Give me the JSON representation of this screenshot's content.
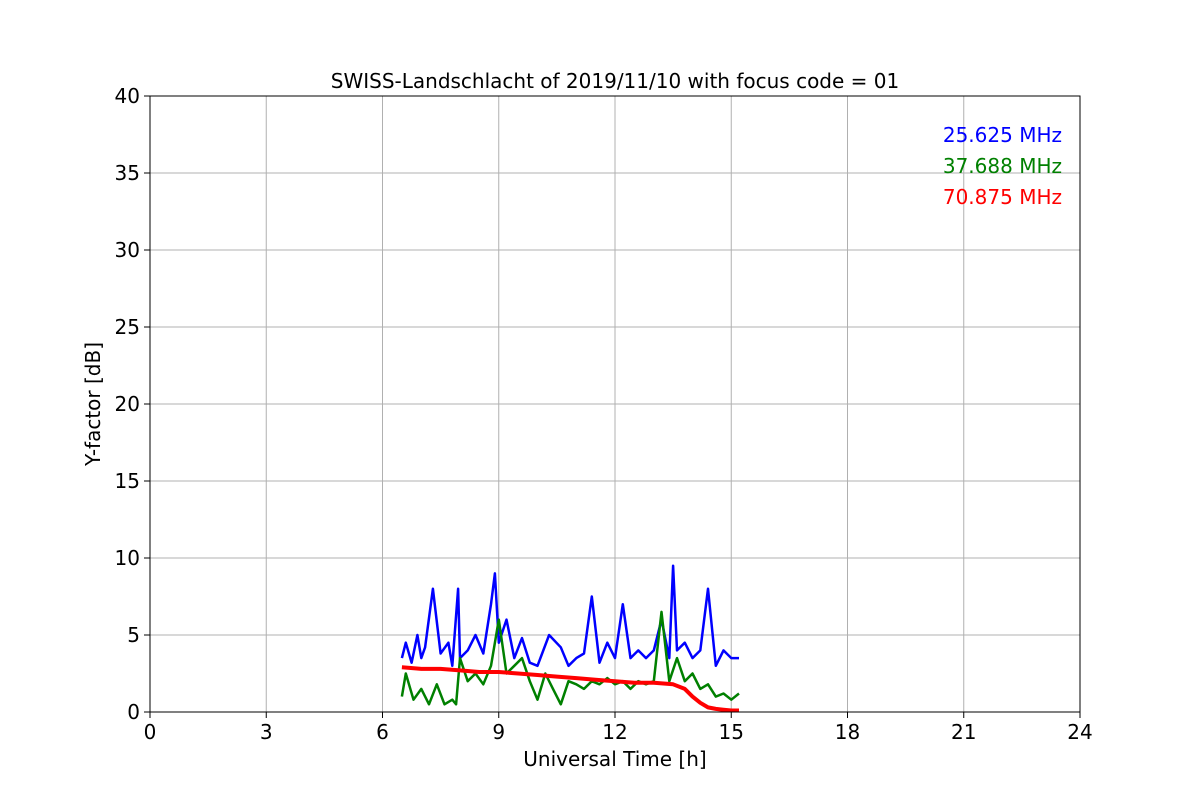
{
  "chart_data": {
    "type": "line",
    "title": "SWISS-Landschlacht of 2019/11/10 with focus code = 01",
    "xlabel": "Universal Time [h]",
    "ylabel": "Y-factor [dB]",
    "xlim": [
      0,
      24
    ],
    "ylim": [
      0,
      40
    ],
    "xticks": [
      0,
      3,
      6,
      9,
      12,
      15,
      18,
      21,
      24
    ],
    "yticks": [
      0,
      5,
      10,
      15,
      20,
      25,
      30,
      35,
      40
    ],
    "grid": true,
    "legend_position": "top-right",
    "series": [
      {
        "name": "25.625 MHz",
        "color": "#0000ff",
        "x": [
          6.5,
          6.6,
          6.75,
          6.9,
          7.0,
          7.1,
          7.3,
          7.5,
          7.7,
          7.8,
          7.95,
          8.0,
          8.2,
          8.4,
          8.6,
          8.8,
          8.9,
          9.0,
          9.2,
          9.4,
          9.6,
          9.8,
          10.0,
          10.3,
          10.6,
          10.8,
          11.0,
          11.2,
          11.4,
          11.6,
          11.8,
          12.0,
          12.2,
          12.4,
          12.6,
          12.8,
          13.0,
          13.2,
          13.4,
          13.5,
          13.6,
          13.8,
          14.0,
          14.2,
          14.4,
          14.6,
          14.8,
          15.0,
          15.2
        ],
        "y": [
          3.5,
          4.5,
          3.2,
          5.0,
          3.5,
          4.2,
          8.0,
          3.8,
          4.5,
          3.0,
          8.0,
          3.5,
          4.0,
          5.0,
          3.8,
          7.0,
          9.0,
          4.5,
          6.0,
          3.5,
          4.8,
          3.2,
          3.0,
          5.0,
          4.2,
          3.0,
          3.5,
          3.8,
          7.5,
          3.2,
          4.5,
          3.5,
          7.0,
          3.5,
          4.0,
          3.5,
          4.0,
          6.0,
          3.5,
          9.5,
          4.0,
          4.5,
          3.5,
          4.0,
          8.0,
          3.0,
          4.0,
          3.5,
          3.5
        ]
      },
      {
        "name": "37.688 MHz",
        "color": "#008000",
        "x": [
          6.5,
          6.6,
          6.8,
          7.0,
          7.2,
          7.4,
          7.6,
          7.8,
          7.9,
          8.0,
          8.2,
          8.4,
          8.6,
          8.8,
          9.0,
          9.2,
          9.4,
          9.6,
          9.8,
          10.0,
          10.2,
          10.4,
          10.6,
          10.8,
          11.0,
          11.2,
          11.4,
          11.6,
          11.8,
          12.0,
          12.2,
          12.4,
          12.6,
          12.8,
          13.0,
          13.2,
          13.4,
          13.6,
          13.8,
          14.0,
          14.2,
          14.4,
          14.6,
          14.8,
          15.0,
          15.2
        ],
        "y": [
          1.0,
          2.5,
          0.8,
          1.5,
          0.5,
          1.8,
          0.5,
          0.8,
          0.5,
          3.5,
          2.0,
          2.5,
          1.8,
          3.0,
          6.0,
          2.5,
          3.0,
          3.5,
          2.0,
          0.8,
          2.5,
          1.5,
          0.5,
          2.0,
          1.8,
          1.5,
          2.0,
          1.8,
          2.2,
          1.8,
          2.0,
          1.5,
          2.0,
          1.8,
          2.0,
          6.5,
          2.0,
          3.5,
          2.0,
          2.5,
          1.5,
          1.8,
          1.0,
          1.2,
          0.8,
          1.2
        ]
      },
      {
        "name": "70.875 MHz",
        "color": "#ff0000",
        "x": [
          6.5,
          7.0,
          7.5,
          8.0,
          8.5,
          9.0,
          9.5,
          10.0,
          10.5,
          11.0,
          11.5,
          12.0,
          12.5,
          13.0,
          13.5,
          13.8,
          14.0,
          14.2,
          14.4,
          14.6,
          14.8,
          15.0,
          15.2
        ],
        "y": [
          2.9,
          2.8,
          2.8,
          2.7,
          2.6,
          2.6,
          2.5,
          2.4,
          2.3,
          2.2,
          2.1,
          2.0,
          1.9,
          1.9,
          1.8,
          1.5,
          1.0,
          0.6,
          0.3,
          0.2,
          0.15,
          0.1,
          0.1
        ]
      }
    ]
  }
}
